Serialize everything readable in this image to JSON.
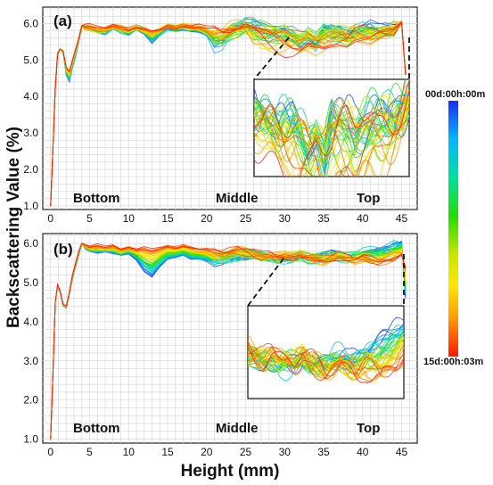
{
  "chart_data": [
    {
      "panel": "(a)",
      "type": "line",
      "xlabel": "",
      "ylabel": "",
      "xlim": [
        -1,
        47
      ],
      "ylim": [
        0.9,
        6.45
      ],
      "x_ticks": [
        "0",
        "5",
        "10",
        "15",
        "20",
        "25",
        "30",
        "35",
        "40",
        "45"
      ],
      "y_ticks": [
        "1.0",
        "2.0",
        "3.0",
        "4.0",
        "5.0",
        "6.0"
      ],
      "annotations": [
        "Bottom",
        "Middle",
        "Top"
      ],
      "inset_range_x": [
        25,
        45
      ],
      "curve_count": 40,
      "profile_x": [
        0.0,
        0.3,
        0.6,
        0.9,
        1.2,
        1.6,
        2.0,
        2.4,
        2.8,
        3.2,
        3.6,
        4.0,
        4.5,
        5.0,
        6,
        7,
        8,
        9,
        10,
        11,
        12,
        13,
        14,
        15,
        16,
        17,
        18,
        19,
        20,
        21,
        22,
        23,
        24,
        25,
        26,
        27,
        28,
        29,
        30,
        31,
        32,
        33,
        34,
        35,
        36,
        37,
        38,
        39,
        40,
        41,
        42,
        43,
        44,
        45,
        45.5
      ],
      "initial_profile_y": [
        1.0,
        2.6,
        4.3,
        5.2,
        5.3,
        5.2,
        4.6,
        4.4,
        4.8,
        5.1,
        5.5,
        5.9,
        5.85,
        5.85,
        5.8,
        5.75,
        5.9,
        5.8,
        5.7,
        5.85,
        5.75,
        5.5,
        5.7,
        5.9,
        5.85,
        5.9,
        5.85,
        5.8,
        5.7,
        5.4,
        5.5,
        5.8,
        5.9,
        5.95,
        5.9,
        5.8,
        5.75,
        5.8,
        5.85,
        5.7,
        5.5,
        5.6,
        5.4,
        5.9,
        5.85,
        5.8,
        5.7,
        5.75,
        5.85,
        5.9,
        5.8,
        5.85,
        5.9,
        6.0,
        4.6
      ],
      "final_profile_y": [
        1.0,
        2.6,
        4.2,
        5.15,
        5.3,
        5.25,
        4.8,
        4.7,
        5.0,
        5.3,
        5.6,
        5.95,
        5.9,
        5.9,
        5.85,
        5.85,
        5.95,
        5.9,
        5.85,
        5.9,
        5.85,
        5.8,
        5.85,
        5.95,
        5.9,
        5.95,
        5.9,
        5.9,
        5.85,
        5.8,
        5.75,
        5.8,
        5.85,
        5.9,
        5.85,
        5.8,
        5.75,
        5.7,
        5.65,
        5.6,
        5.6,
        5.7,
        5.65,
        5.6,
        5.7,
        5.75,
        5.7,
        5.8,
        5.75,
        5.7,
        5.8,
        5.85,
        5.9,
        6.05,
        4.6
      ]
    },
    {
      "panel": "(b)",
      "type": "line",
      "xlabel": "Height (mm)",
      "ylabel": "",
      "xlim": [
        -1,
        47
      ],
      "ylim": [
        0.9,
        6.25
      ],
      "x_ticks": [
        "0",
        "5",
        "10",
        "15",
        "20",
        "25",
        "30",
        "35",
        "40",
        "45"
      ],
      "y_ticks": [
        "1.0",
        "2.0",
        "3.0",
        "4.0",
        "5.0",
        "6.0"
      ],
      "annotations": [
        "Bottom",
        "Middle",
        "Top"
      ],
      "inset_range_x": [
        25,
        45
      ],
      "curve_count": 40,
      "profile_x": [
        0.0,
        0.3,
        0.6,
        0.9,
        1.2,
        1.6,
        2.0,
        2.4,
        2.8,
        3.2,
        3.6,
        4.0,
        4.5,
        5.0,
        6,
        7,
        8,
        9,
        10,
        11,
        12,
        13,
        14,
        15,
        16,
        17,
        18,
        19,
        20,
        21,
        22,
        23,
        24,
        25,
        26,
        27,
        28,
        29,
        30,
        31,
        32,
        33,
        34,
        35,
        36,
        37,
        38,
        39,
        40,
        41,
        42,
        43,
        44,
        45,
        45.5
      ],
      "initial_profile_y": [
        1.0,
        2.7,
        4.5,
        4.9,
        4.75,
        4.4,
        4.35,
        4.7,
        5.1,
        5.4,
        5.7,
        6.0,
        5.85,
        5.8,
        5.75,
        5.8,
        5.75,
        5.7,
        5.75,
        5.6,
        5.3,
        5.15,
        5.4,
        5.6,
        5.65,
        5.7,
        5.6,
        5.6,
        5.55,
        5.5,
        5.55,
        5.6,
        5.6,
        5.65,
        5.7,
        5.65,
        5.6,
        5.55,
        5.6,
        5.65,
        5.7,
        5.6,
        5.65,
        5.7,
        5.75,
        5.7,
        5.65,
        5.7,
        5.75,
        5.8,
        5.85,
        5.9,
        6.0,
        6.05,
        4.6
      ],
      "final_profile_y": [
        1.0,
        2.7,
        4.5,
        4.95,
        4.8,
        4.45,
        4.4,
        4.75,
        5.2,
        5.5,
        5.8,
        6.0,
        5.95,
        5.9,
        5.95,
        5.9,
        5.95,
        5.85,
        5.9,
        5.85,
        5.9,
        5.85,
        5.9,
        5.95,
        5.9,
        5.95,
        5.9,
        5.85,
        5.85,
        5.8,
        5.75,
        5.8,
        5.85,
        5.8,
        5.75,
        5.7,
        5.75,
        5.7,
        5.7,
        5.65,
        5.7,
        5.65,
        5.6,
        5.55,
        5.6,
        5.65,
        5.6,
        5.55,
        5.6,
        5.55,
        5.5,
        5.55,
        5.6,
        5.7,
        5.4
      ]
    }
  ],
  "shared_ylabel": "Backscattering Value (%)",
  "colorbar": {
    "top_label": "00d:00h:00m",
    "bottom_label": "15d:00h:03m",
    "colors": [
      "#1a2cff",
      "#00b8ff",
      "#00e0a0",
      "#22dd00",
      "#c8e600",
      "#ffe600",
      "#ff9a00",
      "#ff1a00"
    ]
  }
}
